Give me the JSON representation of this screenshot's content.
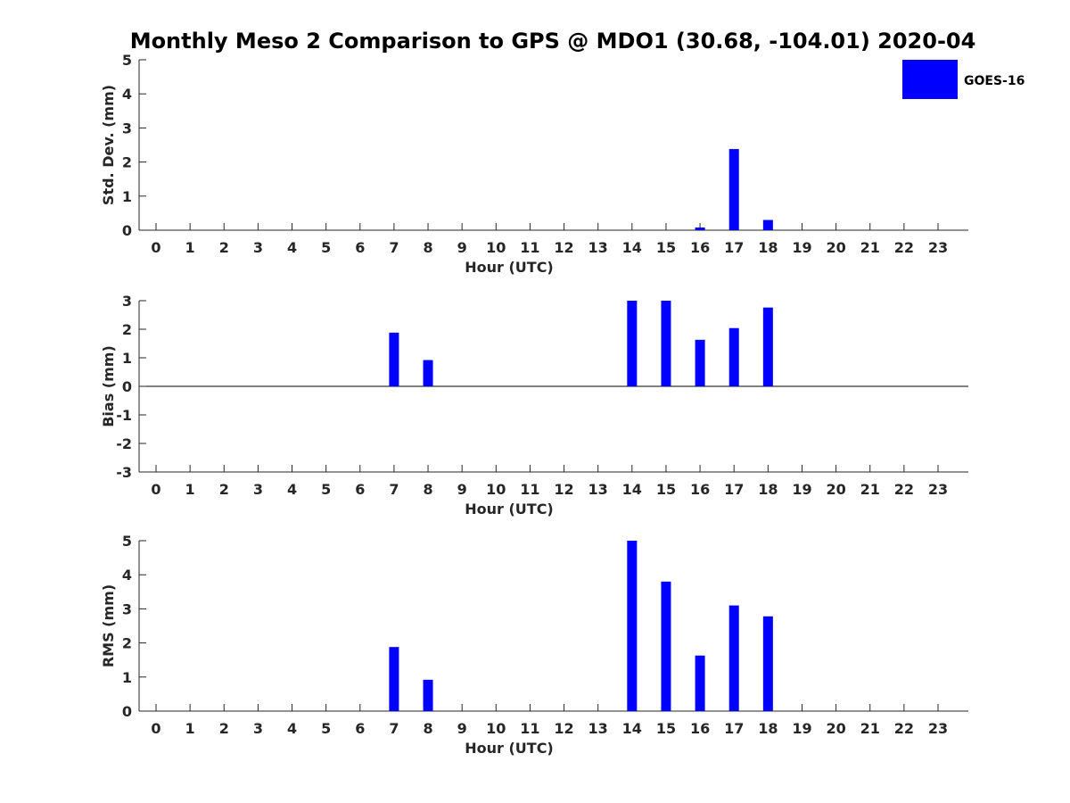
{
  "figure": {
    "title": "Monthly Meso 2 Comparison to GPS @ MDO1 (30.68, -104.01) 2020-04",
    "legend": {
      "label": "GOES-16",
      "color": "#0000ff"
    }
  },
  "chart_data": [
    {
      "type": "bar",
      "name": "std-dev",
      "xlabel": "Hour (UTC)",
      "ylabel": "Std. Dev. (mm)",
      "ylim": [
        0,
        5
      ],
      "yticks": [
        "0",
        "1",
        "2",
        "3",
        "4",
        "5"
      ],
      "ytick_values": [
        0,
        1,
        2,
        3,
        4,
        5
      ],
      "categories": [
        "0",
        "1",
        "2",
        "3",
        "4",
        "5",
        "6",
        "7",
        "8",
        "9",
        "10",
        "11",
        "12",
        "13",
        "14",
        "15",
        "16",
        "17",
        "18",
        "19",
        "20",
        "21",
        "22",
        "23"
      ],
      "series": [
        {
          "name": "GOES-16",
          "color": "#0000ff",
          "values": [
            null,
            null,
            null,
            null,
            null,
            null,
            null,
            0,
            0,
            null,
            null,
            null,
            null,
            null,
            0,
            0,
            0.08,
            2.38,
            0.3,
            null,
            null,
            null,
            null,
            null
          ]
        }
      ],
      "zero_line": false
    },
    {
      "type": "bar",
      "name": "bias",
      "xlabel": "Hour (UTC)",
      "ylabel": "Bias (mm)",
      "ylim": [
        -3,
        3
      ],
      "yticks": [
        "-3",
        "-2",
        "-1",
        "0",
        "1",
        "2",
        "3"
      ],
      "ytick_values": [
        -3,
        -2,
        -1,
        0,
        1,
        2,
        3
      ],
      "categories": [
        "0",
        "1",
        "2",
        "3",
        "4",
        "5",
        "6",
        "7",
        "8",
        "9",
        "10",
        "11",
        "12",
        "13",
        "14",
        "15",
        "16",
        "17",
        "18",
        "19",
        "20",
        "21",
        "22",
        "23"
      ],
      "series": [
        {
          "name": "GOES-16",
          "color": "#0000ff",
          "values": [
            null,
            null,
            null,
            null,
            null,
            null,
            null,
            1.88,
            0.92,
            null,
            null,
            null,
            null,
            null,
            3.0,
            3.0,
            1.63,
            2.04,
            2.76,
            null,
            null,
            null,
            null,
            null
          ]
        }
      ],
      "zero_line": true
    },
    {
      "type": "bar",
      "name": "rms",
      "xlabel": "Hour (UTC)",
      "ylabel": "RMS (mm)",
      "ylim": [
        0,
        5
      ],
      "yticks": [
        "0",
        "1",
        "2",
        "3",
        "4",
        "5"
      ],
      "ytick_values": [
        0,
        1,
        2,
        3,
        4,
        5
      ],
      "categories": [
        "0",
        "1",
        "2",
        "3",
        "4",
        "5",
        "6",
        "7",
        "8",
        "9",
        "10",
        "11",
        "12",
        "13",
        "14",
        "15",
        "16",
        "17",
        "18",
        "19",
        "20",
        "21",
        "22",
        "23"
      ],
      "series": [
        {
          "name": "GOES-16",
          "color": "#0000ff",
          "values": [
            null,
            null,
            null,
            null,
            null,
            null,
            null,
            1.88,
            0.92,
            null,
            null,
            null,
            null,
            null,
            5.0,
            3.8,
            1.63,
            3.1,
            2.78,
            null,
            null,
            null,
            null,
            null
          ]
        }
      ],
      "zero_line": false
    }
  ]
}
